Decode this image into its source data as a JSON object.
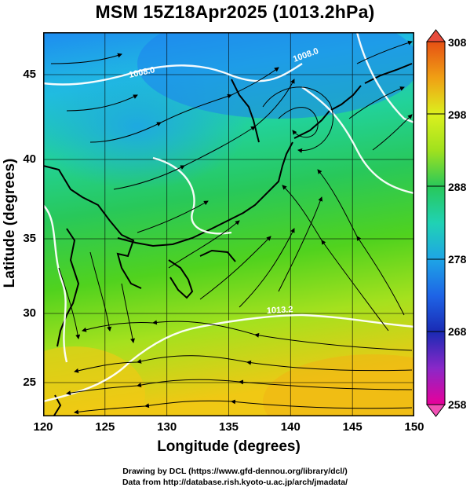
{
  "title": "MSM 15Z18Apr2025 (1013.2hPa)",
  "map": {
    "xlabel": "Longitude (degrees)",
    "ylabel": "Latitude  (degrees)",
    "x_ticks": [
      "120",
      "125",
      "130",
      "135",
      "140",
      "145",
      "150"
    ],
    "y_ticks": [
      "25",
      "30",
      "35",
      "40",
      "45"
    ],
    "lon_range": [
      120,
      150
    ],
    "lat_range": [
      22.4,
      47.6
    ],
    "contour_labels": [
      "1008.0",
      "1008.0",
      "1013.2"
    ]
  },
  "colorbar": {
    "ticks": [
      "308",
      "298",
      "288",
      "278",
      "268",
      "258"
    ],
    "range": [
      258,
      308
    ],
    "colors": [
      "#e8009a",
      "#8a28c8",
      "#1a2ab4",
      "#1e64e6",
      "#1ea5e6",
      "#20d2b4",
      "#28c85a",
      "#50d21e",
      "#a0e11e",
      "#dcf01e",
      "#f5d214",
      "#f0a014",
      "#e65014"
    ]
  },
  "credits": {
    "line1": "Drawing by DCL (https://www.gfd-dennou.org/library/dcl/)",
    "line2": "Data from http://database.rish.kyoto-u.ac.jp/arch/jmadata/"
  }
}
